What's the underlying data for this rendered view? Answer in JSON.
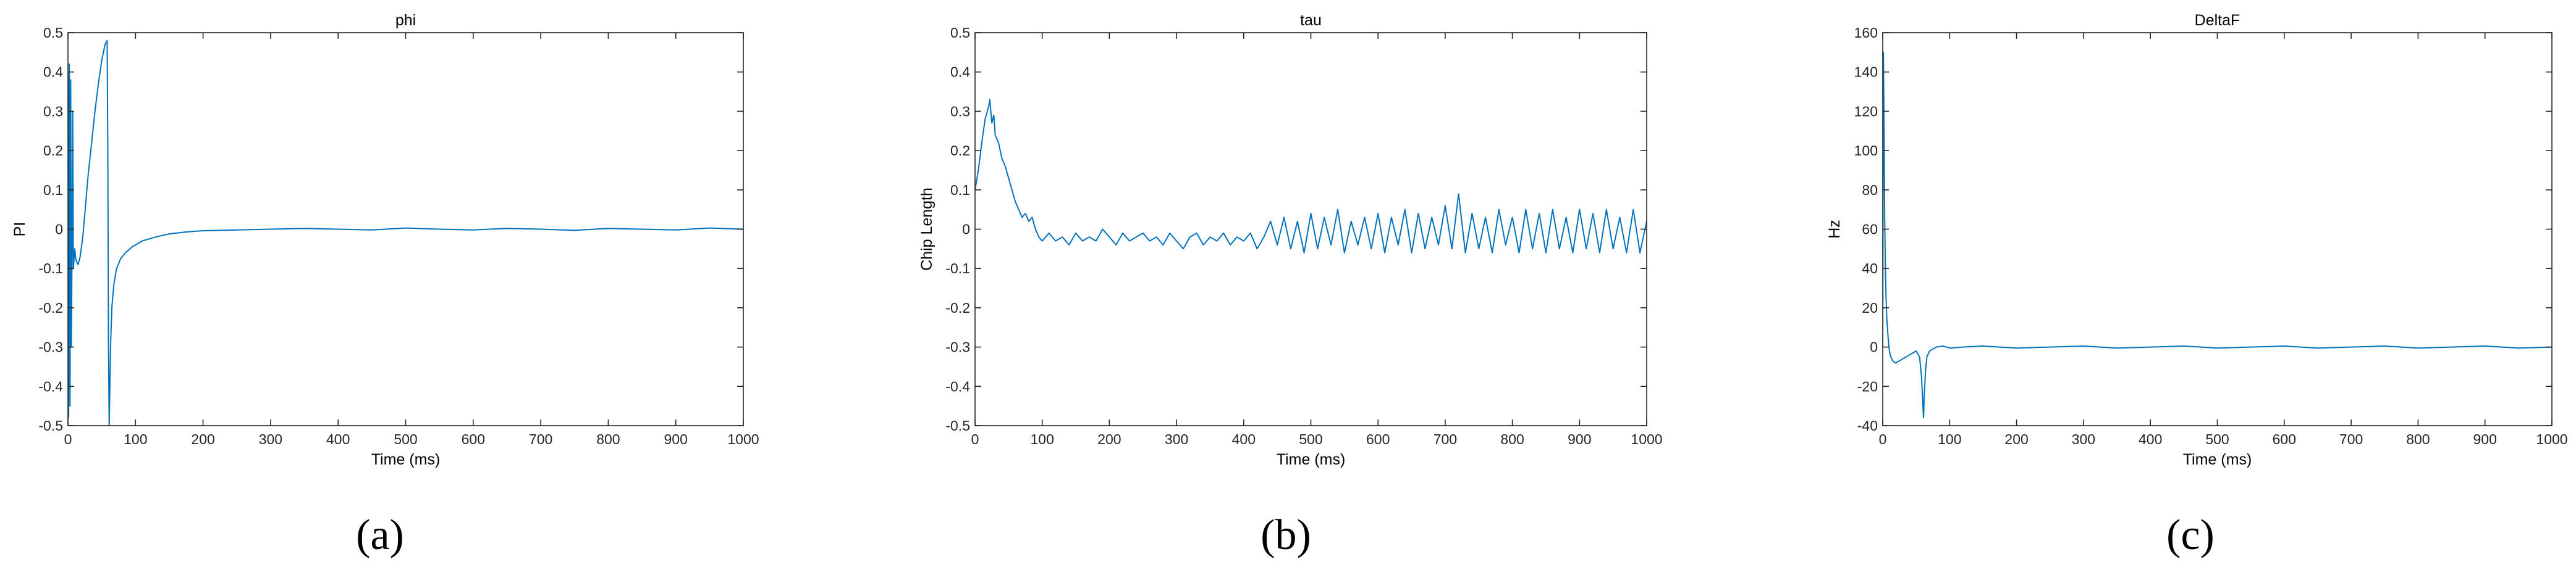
{
  "chart_data": [
    {
      "type": "line",
      "title": "phi",
      "xlabel": "Time (ms)",
      "ylabel": "PI",
      "xlim": [
        0,
        1000
      ],
      "ylim": [
        -0.5,
        0.5
      ],
      "xticks": [
        0,
        100,
        200,
        300,
        400,
        500,
        600,
        700,
        800,
        900,
        1000
      ],
      "yticks": [
        -0.5,
        -0.4,
        -0.3,
        -0.2,
        -0.1,
        0,
        0.1,
        0.2,
        0.3,
        0.4,
        0.5
      ],
      "ytick_labels": [
        "-0.5",
        "-0.4",
        "-0.3",
        "-0.2",
        "-0.1",
        "0",
        "0.1",
        "0.2",
        "0.3",
        "0.4",
        "0.5"
      ],
      "caption": "(a)",
      "color": "#0072BD",
      "grid": false,
      "series": [
        {
          "x": [
            0,
            1,
            2,
            3,
            4,
            5,
            6,
            7,
            8,
            10,
            12,
            15,
            18,
            22,
            26,
            30,
            35,
            40,
            45,
            50,
            55,
            58,
            59,
            60,
            61,
            62,
            63,
            65,
            68,
            72,
            78,
            85,
            95,
            110,
            130,
            150,
            175,
            200,
            250,
            300,
            350,
            400,
            450,
            500,
            550,
            600,
            650,
            700,
            750,
            800,
            850,
            900,
            950,
            1000
          ],
          "y": [
            0.4,
            -0.48,
            0.42,
            -0.45,
            0.38,
            -0.3,
            -0.05,
            0.3,
            -0.1,
            -0.05,
            -0.08,
            -0.09,
            -0.07,
            -0.02,
            0.06,
            0.14,
            0.22,
            0.3,
            0.37,
            0.43,
            0.47,
            0.48,
            0.2,
            -0.3,
            -0.5,
            -0.4,
            -0.3,
            -0.2,
            -0.14,
            -0.1,
            -0.075,
            -0.06,
            -0.045,
            -0.03,
            -0.02,
            -0.012,
            -0.007,
            -0.004,
            -0.002,
            0,
            0.002,
            0,
            -0.002,
            0.003,
            0,
            -0.002,
            0.002,
            0,
            -0.003,
            0.002,
            0,
            -0.002,
            0.003,
            0
          ]
        }
      ]
    },
    {
      "type": "line",
      "title": "tau",
      "xlabel": "Time (ms)",
      "ylabel": "Chip Length",
      "xlim": [
        0,
        1000
      ],
      "ylim": [
        -0.5,
        0.5
      ],
      "xticks": [
        0,
        100,
        200,
        300,
        400,
        500,
        600,
        700,
        800,
        900,
        1000
      ],
      "yticks": [
        -0.5,
        -0.4,
        -0.3,
        -0.2,
        -0.1,
        0,
        0.1,
        0.2,
        0.3,
        0.4,
        0.5
      ],
      "ytick_labels": [
        "-0.5",
        "-0.4",
        "-0.3",
        "-0.2",
        "-0.1",
        "0",
        "0.1",
        "0.2",
        "0.3",
        "0.4",
        "0.5"
      ],
      "caption": "(b)",
      "color": "#0072BD",
      "grid": false,
      "series": [
        {
          "x": [
            0,
            5,
            10,
            15,
            20,
            22,
            25,
            28,
            30,
            35,
            40,
            45,
            50,
            55,
            60,
            65,
            70,
            75,
            80,
            85,
            90,
            95,
            100,
            110,
            120,
            130,
            140,
            150,
            160,
            170,
            180,
            190,
            200,
            210,
            220,
            230,
            240,
            250,
            260,
            270,
            280,
            290,
            300,
            310,
            320,
            330,
            340,
            350,
            360,
            370,
            380,
            390,
            400,
            410,
            420,
            430,
            440,
            450,
            460,
            470,
            480,
            490,
            500,
            510,
            520,
            530,
            540,
            550,
            560,
            570,
            580,
            590,
            600,
            610,
            620,
            630,
            640,
            650,
            660,
            670,
            680,
            690,
            700,
            710,
            720,
            730,
            740,
            750,
            760,
            770,
            780,
            790,
            800,
            810,
            820,
            830,
            840,
            850,
            860,
            870,
            880,
            890,
            900,
            910,
            920,
            930,
            940,
            950,
            960,
            970,
            980,
            990,
            1000
          ],
          "y": [
            0.1,
            0.15,
            0.22,
            0.28,
            0.31,
            0.33,
            0.27,
            0.29,
            0.24,
            0.22,
            0.18,
            0.16,
            0.13,
            0.1,
            0.07,
            0.05,
            0.03,
            0.04,
            0.02,
            0.03,
            0.0,
            -0.02,
            -0.03,
            -0.01,
            -0.03,
            -0.02,
            -0.04,
            -0.01,
            -0.03,
            -0.02,
            -0.03,
            0.0,
            -0.02,
            -0.04,
            -0.01,
            -0.03,
            -0.02,
            -0.01,
            -0.03,
            -0.02,
            -0.04,
            -0.01,
            -0.03,
            -0.05,
            -0.02,
            -0.01,
            -0.04,
            -0.02,
            -0.03,
            -0.01,
            -0.04,
            -0.02,
            -0.03,
            -0.01,
            -0.05,
            -0.02,
            0.02,
            -0.04,
            0.03,
            -0.05,
            0.02,
            -0.06,
            0.04,
            -0.05,
            0.03,
            -0.04,
            0.05,
            -0.06,
            0.02,
            -0.04,
            0.03,
            -0.05,
            0.04,
            -0.06,
            0.03,
            -0.04,
            0.05,
            -0.06,
            0.04,
            -0.05,
            0.03,
            -0.04,
            0.06,
            -0.05,
            0.09,
            -0.06,
            0.04,
            -0.05,
            0.03,
            -0.06,
            0.05,
            -0.04,
            0.03,
            -0.06,
            0.05,
            -0.05,
            0.04,
            -0.06,
            0.05,
            -0.05,
            0.03,
            -0.06,
            0.05,
            -0.05,
            0.04,
            -0.06,
            0.05,
            -0.05,
            0.03,
            -0.06,
            0.05,
            -0.06,
            0.02
          ]
        }
      ]
    },
    {
      "type": "line",
      "title": "DeltaF",
      "xlabel": "Time (ms)",
      "ylabel": "Hz",
      "xlim": [
        0,
        1000
      ],
      "ylim": [
        -40,
        160
      ],
      "xticks": [
        0,
        100,
        200,
        300,
        400,
        500,
        600,
        700,
        800,
        900,
        1000
      ],
      "yticks": [
        -40,
        -20,
        0,
        20,
        40,
        60,
        80,
        100,
        120,
        140,
        160
      ],
      "ytick_labels": [
        "-40",
        "-20",
        "0",
        "20",
        "40",
        "60",
        "80",
        "100",
        "120",
        "140",
        "160"
      ],
      "caption": "(c)",
      "color": "#0072BD",
      "grid": false,
      "series": [
        {
          "x": [
            0,
            1,
            2,
            3,
            4,
            5,
            6,
            8,
            10,
            12,
            15,
            18,
            20,
            25,
            30,
            35,
            40,
            45,
            50,
            55,
            58,
            60,
            61,
            62,
            64,
            66,
            70,
            75,
            80,
            90,
            100,
            120,
            150,
            200,
            250,
            300,
            350,
            400,
            450,
            500,
            550,
            600,
            650,
            700,
            750,
            800,
            850,
            900,
            950,
            1000
          ],
          "y": [
            0,
            150,
            110,
            65,
            40,
            25,
            15,
            5,
            -2,
            -5,
            -7,
            -8,
            -8,
            -7,
            -6,
            -5,
            -4,
            -3,
            -2,
            -5,
            -15,
            -30,
            -36,
            -25,
            -12,
            -5,
            -2,
            -1,
            0,
            0.5,
            -0.5,
            0,
            0.5,
            -0.5,
            0,
            0.5,
            -0.5,
            0,
            0.5,
            -0.5,
            0,
            0.5,
            -0.5,
            0,
            0.5,
            -0.5,
            0,
            0.5,
            -0.5,
            0
          ]
        }
      ]
    }
  ]
}
